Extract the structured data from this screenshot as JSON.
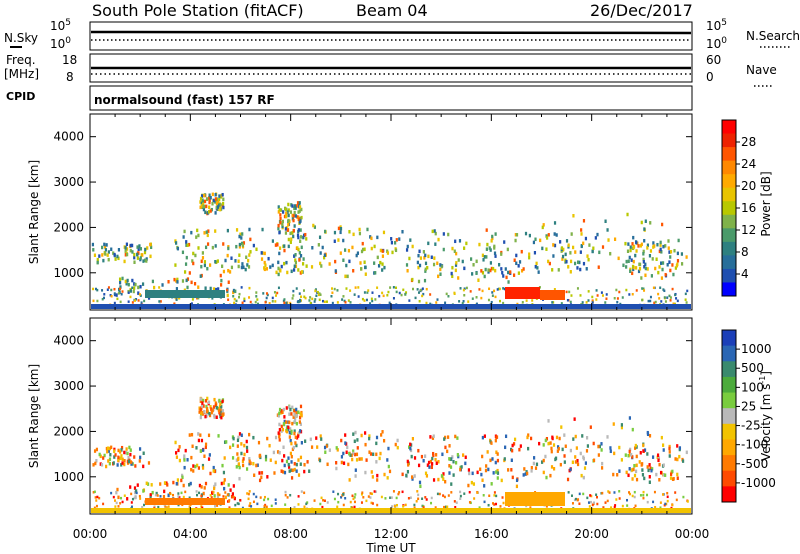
{
  "header": {
    "station": "South Pole Station (fitACF)",
    "beam": "Beam 04",
    "date": "26/Dec/2017"
  },
  "top_panels": {
    "nsky_label": "N.Sky",
    "nsky_ticks": [
      "10^5",
      "10^0"
    ],
    "nsearch_label": "N.Search",
    "nsearch_ticks": [
      "10^5",
      "10^0"
    ],
    "freq_label": "Freq.",
    "freq_unit": "[MHz]",
    "freq_ticks": [
      "18",
      "8"
    ],
    "nave_label": "Nave",
    "nave_ticks": [
      "60",
      "0"
    ],
    "cpid_label": "CPID",
    "cpid_value": "normalsound (fast) 157 RF"
  },
  "chart_data": [
    {
      "type": "heatmap",
      "title": "",
      "ylabel": "Slant Range [km]",
      "xlabel": "Time UT",
      "ylim": [
        180,
        4500
      ],
      "y_ticks": [
        "4000",
        "3000",
        "2000",
        "1000"
      ],
      "x_ticks": [
        "00:00",
        "04:00",
        "08:00",
        "12:00",
        "16:00",
        "20:00",
        "00:00"
      ],
      "colorbar": {
        "label": "Power [dB]",
        "ticks": [
          "28",
          "24",
          "20",
          "16",
          "12",
          "8",
          "4"
        ],
        "colors": [
          "#ff0000",
          "#ee2200",
          "#ff5500",
          "#ff8800",
          "#ffaa00",
          "#e8c400",
          "#b8c800",
          "#7fb24a",
          "#4a9a6a",
          "#2e8080",
          "#276e9a",
          "#1f4fb0",
          "#0000ff"
        ]
      }
    },
    {
      "type": "heatmap",
      "title": "",
      "ylabel": "Slant Range [km]",
      "xlabel": "Time UT",
      "ylim": [
        180,
        4500
      ],
      "y_ticks": [
        "4000",
        "3000",
        "2000",
        "1000"
      ],
      "x_ticks": [
        "00:00",
        "04:00",
        "08:00",
        "12:00",
        "16:00",
        "20:00",
        "00:00"
      ],
      "colorbar": {
        "label": "Velocity [m s^-1]",
        "ticks": [
          "1000",
          "500",
          "100",
          "25",
          "-25",
          "-100",
          "-500",
          "-1000"
        ],
        "colors": [
          "#1b3fb8",
          "#2a66b4",
          "#3a8a6e",
          "#4cab3c",
          "#79cc3e",
          "#b9b9b9",
          "#f2c300",
          "#ffa800",
          "#ff7a00",
          "#ff4a00",
          "#ff0000"
        ]
      }
    }
  ],
  "xaxis_label": "Time UT"
}
